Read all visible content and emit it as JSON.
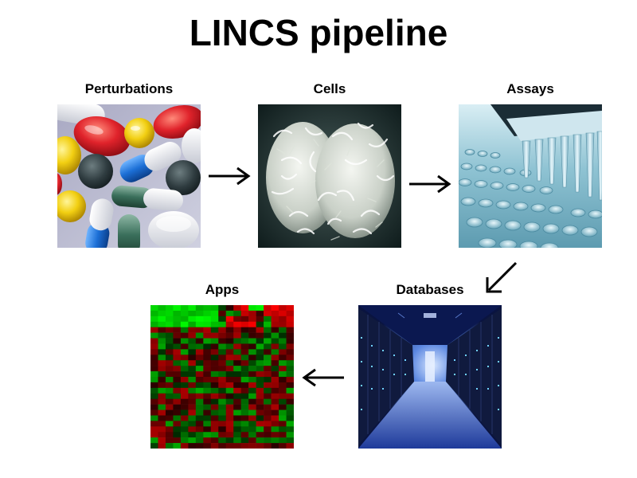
{
  "title": "LINCS pipeline",
  "stages": {
    "perturbations": {
      "label": "Perturbations",
      "icon": "pills-photo"
    },
    "cells": {
      "label": "Cells",
      "icon": "cell-micrograph-photo"
    },
    "assays": {
      "label": "Assays",
      "icon": "pipette-well-plate-photo"
    },
    "databases": {
      "label": "Databases",
      "icon": "server-room-photo"
    },
    "apps": {
      "label": "Apps",
      "icon": "heatmap-image"
    }
  },
  "colors": {
    "heatmap_high": "#19ff19",
    "heatmap_low": "#ff1a1a",
    "heatmap_mid": "#000000"
  }
}
